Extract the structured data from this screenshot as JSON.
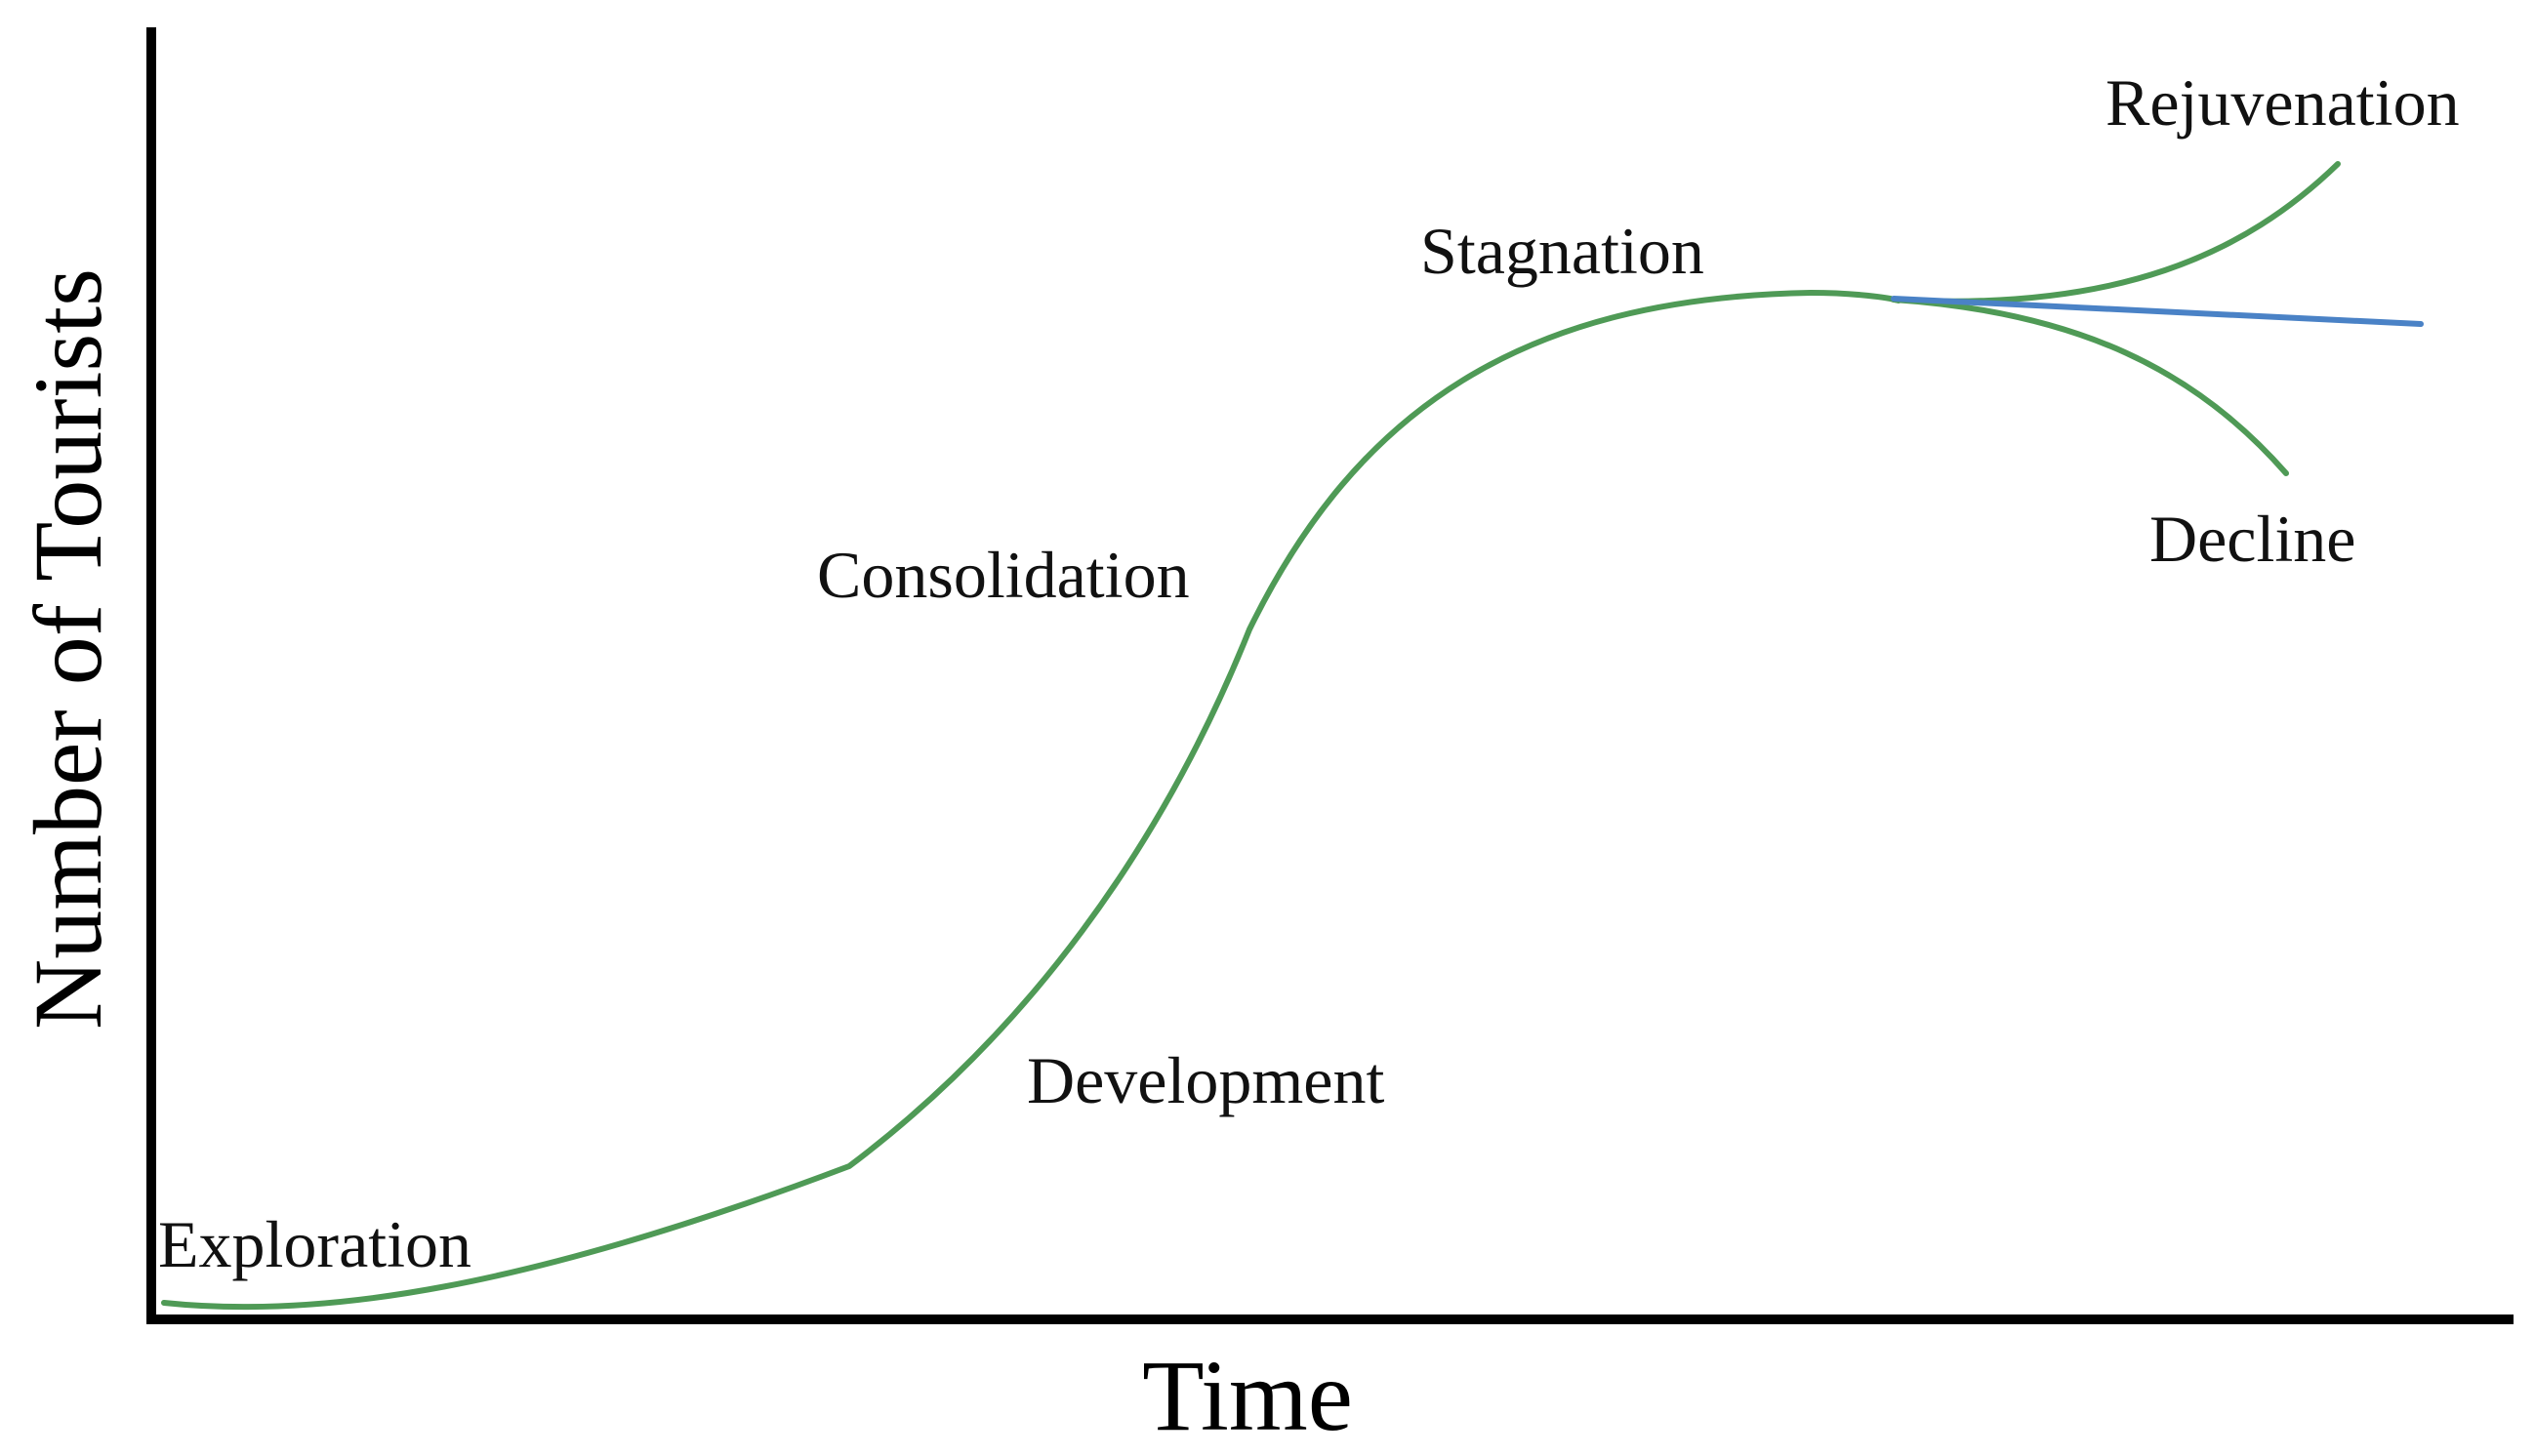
{
  "axes": {
    "x_label": "Time",
    "y_label": "Number of Tourists"
  },
  "stages": {
    "exploration": "Exploration",
    "development": "Development",
    "consolidation": "Consolidation",
    "stagnation": "Stagnation",
    "rejuvenation": "Rejuvenation",
    "decline": "Decline"
  },
  "colors": {
    "main_curve": "#4f9a56",
    "stabilization_curve": "#4a82c6",
    "axis": "#000000"
  }
}
